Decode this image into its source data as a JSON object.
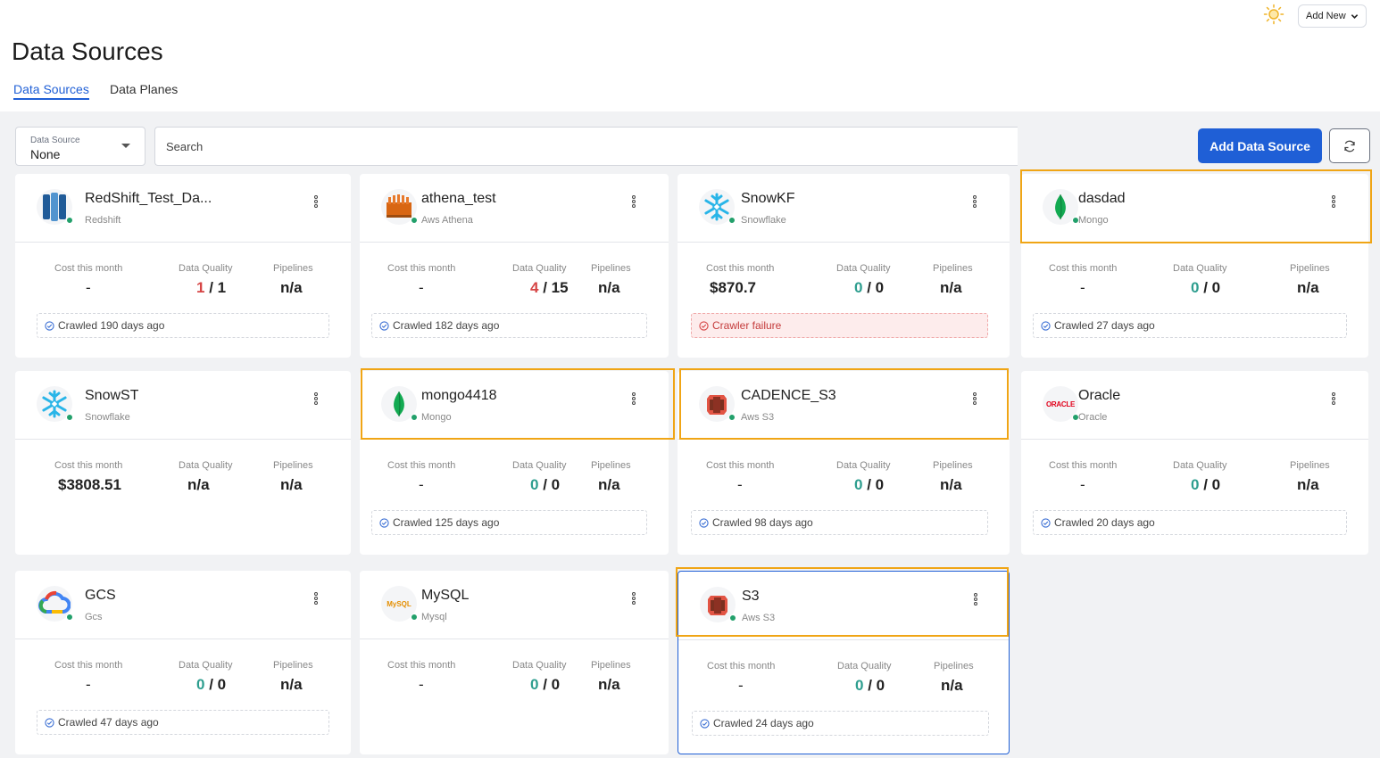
{
  "header": {
    "theme_icon": "sun-icon",
    "add_new_label": "Add New",
    "page_title": "Data Sources"
  },
  "tabs": [
    {
      "label": "Data Sources",
      "active": true
    },
    {
      "label": "Data Planes",
      "active": false
    }
  ],
  "toolbar": {
    "filter_label": "Data Source",
    "filter_value": "None",
    "search_placeholder": "Search",
    "add_button": "Add Data Source",
    "refresh_icon": "refresh-icon"
  },
  "labels": {
    "cost": "Cost this month",
    "quality": "Data Quality",
    "pipelines": "Pipelines"
  },
  "cards": [
    {
      "name": "RedShift_Test_Da...",
      "type": "Redshift",
      "icon": "redshift-icon",
      "cost": "-",
      "dq_pass": "1",
      "dq_total": "/ 1",
      "dq_color": "red",
      "pipelines": "n/a",
      "crawl": "Crawled 190 days ago",
      "crawl_fail": false
    },
    {
      "name": "athena_test",
      "type": "Aws Athena",
      "icon": "athena-icon",
      "cost": "-",
      "dq_pass": "4",
      "dq_total": "/ 15",
      "dq_color": "red",
      "pipelines": "n/a",
      "crawl": "Crawled 182 days ago",
      "crawl_fail": false
    },
    {
      "name": "SnowKF",
      "type": "Snowflake",
      "icon": "snowflake-icon",
      "cost": "$870.7",
      "dq_pass": "0",
      "dq_total": "/ 0",
      "dq_color": "green",
      "pipelines": "n/a",
      "crawl": "Crawler failure",
      "crawl_fail": true
    },
    {
      "name": "dasdad",
      "type": "Mongo",
      "icon": "mongo-icon",
      "cost": "-",
      "dq_pass": "0",
      "dq_total": "/ 0",
      "dq_color": "green",
      "pipelines": "n/a",
      "crawl": "Crawled 27 days ago",
      "crawl_fail": false
    },
    {
      "name": "SnowST",
      "type": "Snowflake",
      "icon": "snowflake-icon",
      "cost": "$3808.51",
      "dq_text": "n/a",
      "pipelines": "n/a",
      "crawl": "",
      "crawl_fail": false
    },
    {
      "name": "mongo4418",
      "type": "Mongo",
      "icon": "mongo-icon",
      "cost": "-",
      "dq_pass": "0",
      "dq_total": "/ 0",
      "dq_color": "green",
      "pipelines": "n/a",
      "crawl": "Crawled 125 days ago",
      "crawl_fail": false
    },
    {
      "name": "CADENCE_S3",
      "type": "Aws S3",
      "icon": "s3-icon",
      "cost": "-",
      "dq_pass": "0",
      "dq_total": "/ 0",
      "dq_color": "green",
      "pipelines": "n/a",
      "crawl": "Crawled 98 days ago",
      "crawl_fail": false
    },
    {
      "name": "Oracle",
      "type": "Oracle",
      "icon": "oracle-icon",
      "logo_text": "ORACLE",
      "cost": "-",
      "dq_pass": "0",
      "dq_total": "/ 0",
      "dq_color": "green",
      "pipelines": "n/a",
      "crawl": "Crawled 20 days ago",
      "crawl_fail": false
    },
    {
      "name": "GCS",
      "type": "Gcs",
      "icon": "gcs-icon",
      "cost": "-",
      "dq_pass": "0",
      "dq_total": "/ 0",
      "dq_color": "green",
      "pipelines": "n/a",
      "crawl": "Crawled 47 days ago",
      "crawl_fail": false
    },
    {
      "name": "MySQL",
      "type": "Mysql",
      "icon": "mysql-icon",
      "logo_text": "MySQL",
      "cost": "-",
      "dq_pass": "0",
      "dq_total": "/ 0",
      "dq_color": "green",
      "pipelines": "n/a",
      "crawl": "",
      "crawl_fail": false
    },
    {
      "name": "S3",
      "type": "Aws S3",
      "icon": "s3-icon",
      "cost": "-",
      "dq_pass": "0",
      "dq_total": "/ 0",
      "dq_color": "green",
      "pipelines": "n/a",
      "crawl": "Crawled 24 days ago",
      "crawl_fail": false
    }
  ],
  "colors": {
    "primary": "#1f5fd6",
    "highlight": "#f0a515",
    "status_ok": "#22a06b",
    "dq_red": "#d64545",
    "dq_green": "#2e9e8f"
  }
}
